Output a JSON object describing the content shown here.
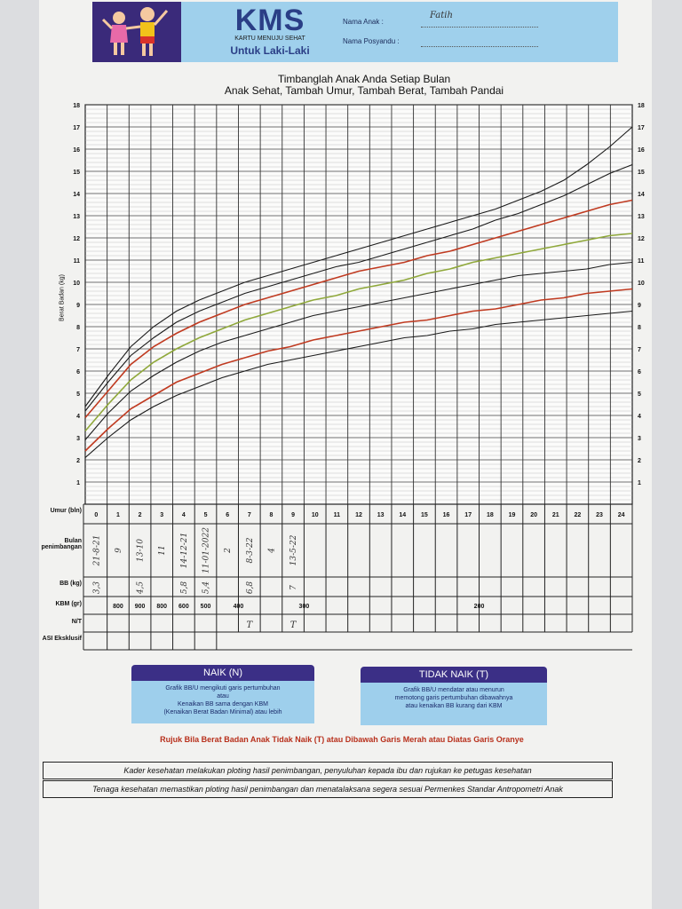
{
  "header": {
    "logo_title": "KMS",
    "logo_subtitle": "KARTU MENUJU SEHAT",
    "gender_label": "Untuk Laki-Laki",
    "child_name_label": "Nama Anak      :",
    "child_name_value": "Fatih",
    "posyandu_label": "Nama Posyandu :"
  },
  "title_line1": "Timbanglah Anak Anda Setiap Bulan",
  "title_line2": "Anak Sehat, Tambah Umur, Tambah Berat, Tambah Pandai",
  "chart_data": {
    "type": "line",
    "ylabel": "Berat Badan (kg)",
    "xlabel": "Umur (bln)",
    "x": [
      0,
      1,
      2,
      3,
      4,
      5,
      6,
      7,
      8,
      9,
      10,
      11,
      12,
      13,
      14,
      15,
      16,
      17,
      18,
      19,
      20,
      21,
      22,
      23,
      24
    ],
    "ylim": [
      0,
      18
    ],
    "yticks": [
      1,
      2,
      3,
      4,
      5,
      6,
      7,
      8,
      9,
      10,
      11,
      12,
      13,
      14,
      15,
      16,
      17,
      18
    ],
    "grid": true,
    "series": [
      {
        "color": "#1a1a1a",
        "values": [
          4.4,
          5.8,
          7.1,
          8.0,
          8.7,
          9.2,
          9.6,
          10.0,
          10.3,
          10.6,
          10.9,
          11.2,
          11.5,
          11.8,
          12.1,
          12.4,
          12.7,
          13.0,
          13.3,
          13.7,
          14.1,
          14.6,
          15.3,
          16.1,
          17.0
        ]
      },
      {
        "color": "#1a1a1a",
        "values": [
          4.2,
          5.5,
          6.7,
          7.5,
          8.2,
          8.7,
          9.1,
          9.5,
          9.8,
          10.1,
          10.4,
          10.7,
          10.9,
          11.2,
          11.5,
          11.8,
          12.1,
          12.4,
          12.8,
          13.1,
          13.5,
          13.9,
          14.4,
          14.9,
          15.3
        ]
      },
      {
        "color": "#c03a20",
        "values": [
          3.9,
          5.1,
          6.3,
          7.1,
          7.7,
          8.2,
          8.6,
          9.0,
          9.3,
          9.6,
          9.9,
          10.2,
          10.5,
          10.7,
          10.9,
          11.2,
          11.4,
          11.7,
          12.0,
          12.3,
          12.6,
          12.9,
          13.2,
          13.5,
          13.7
        ]
      },
      {
        "color": "#8fa83a",
        "values": [
          3.3,
          4.5,
          5.6,
          6.4,
          7.0,
          7.5,
          7.9,
          8.3,
          8.6,
          8.9,
          9.2,
          9.4,
          9.7,
          9.9,
          10.1,
          10.4,
          10.6,
          10.9,
          11.1,
          11.3,
          11.5,
          11.7,
          11.9,
          12.1,
          12.2
        ]
      },
      {
        "color": "#1a1a1a",
        "values": [
          2.9,
          4.1,
          5.1,
          5.8,
          6.4,
          6.9,
          7.3,
          7.6,
          7.9,
          8.2,
          8.5,
          8.7,
          8.9,
          9.1,
          9.3,
          9.5,
          9.7,
          9.9,
          10.1,
          10.3,
          10.4,
          10.5,
          10.6,
          10.8,
          10.9
        ]
      },
      {
        "color": "#c03a20",
        "values": [
          2.4,
          3.4,
          4.3,
          4.9,
          5.5,
          5.9,
          6.3,
          6.6,
          6.9,
          7.1,
          7.4,
          7.6,
          7.8,
          8.0,
          8.2,
          8.3,
          8.5,
          8.7,
          8.8,
          9.0,
          9.2,
          9.3,
          9.5,
          9.6,
          9.7
        ]
      },
      {
        "color": "#1a1a1a",
        "values": [
          2.1,
          3.0,
          3.8,
          4.4,
          4.9,
          5.3,
          5.7,
          6.0,
          6.3,
          6.5,
          6.7,
          6.9,
          7.1,
          7.3,
          7.5,
          7.6,
          7.8,
          7.9,
          8.1,
          8.2,
          8.3,
          8.4,
          8.5,
          8.6,
          8.7
        ]
      }
    ]
  },
  "table": {
    "row_labels": {
      "age": "Umur (bln)",
      "weigh_month": "Bulan penimbangan",
      "weight": "BB (kg)",
      "kbm": "KBM (gr)",
      "nt": "N/T",
      "asi": "ASI Eksklusif"
    },
    "weigh_dates": [
      "21-8-21",
      "9",
      "13-10",
      "11",
      "14-12-21",
      "11-01-2022",
      "2",
      "8-3-22",
      "4",
      "13-5-22"
    ],
    "weights": [
      "3,3",
      "",
      "4,5",
      "",
      "5,8",
      "5,4",
      "",
      "6,8",
      "",
      "7"
    ],
    "kbm_values": [
      "800",
      "900",
      "800",
      "600",
      "500",
      "400",
      "300",
      "200"
    ],
    "nt_marks": [
      "T",
      "T"
    ]
  },
  "naik": {
    "title": "NAIK (N)",
    "line1": "Grafik BB/U mengikuti garis pertumbuhan",
    "line2": "atau",
    "line3": "Kenaikan BB sama dengan KBM",
    "line4": "(Kenaikan Berat Badan Minimal) atau lebih"
  },
  "tidak_naik": {
    "title": "TIDAK NAIK (T)",
    "line1": "Grafik BB/U mendatar atau menurun",
    "line2": "memotong garis pertumbuhan dibawahnya",
    "line3": "atau kenaikan BB kurang dari KBM"
  },
  "referral": "Rujuk Bila Berat Badan Anak Tidak Naik (T) atau Dibawah Garis Merah atau Diatas Garis Oranye",
  "note1": "Kader kesehatan melakukan ploting hasil penimbangan, penyuluhan kepada ibu dan rujukan ke petugas kesehatan",
  "note2": "Tenaga kesehatan memastikan ploting hasil penimbangan dan menatalaksana segera sesuai Permenkes Standar Antropometri Anak"
}
